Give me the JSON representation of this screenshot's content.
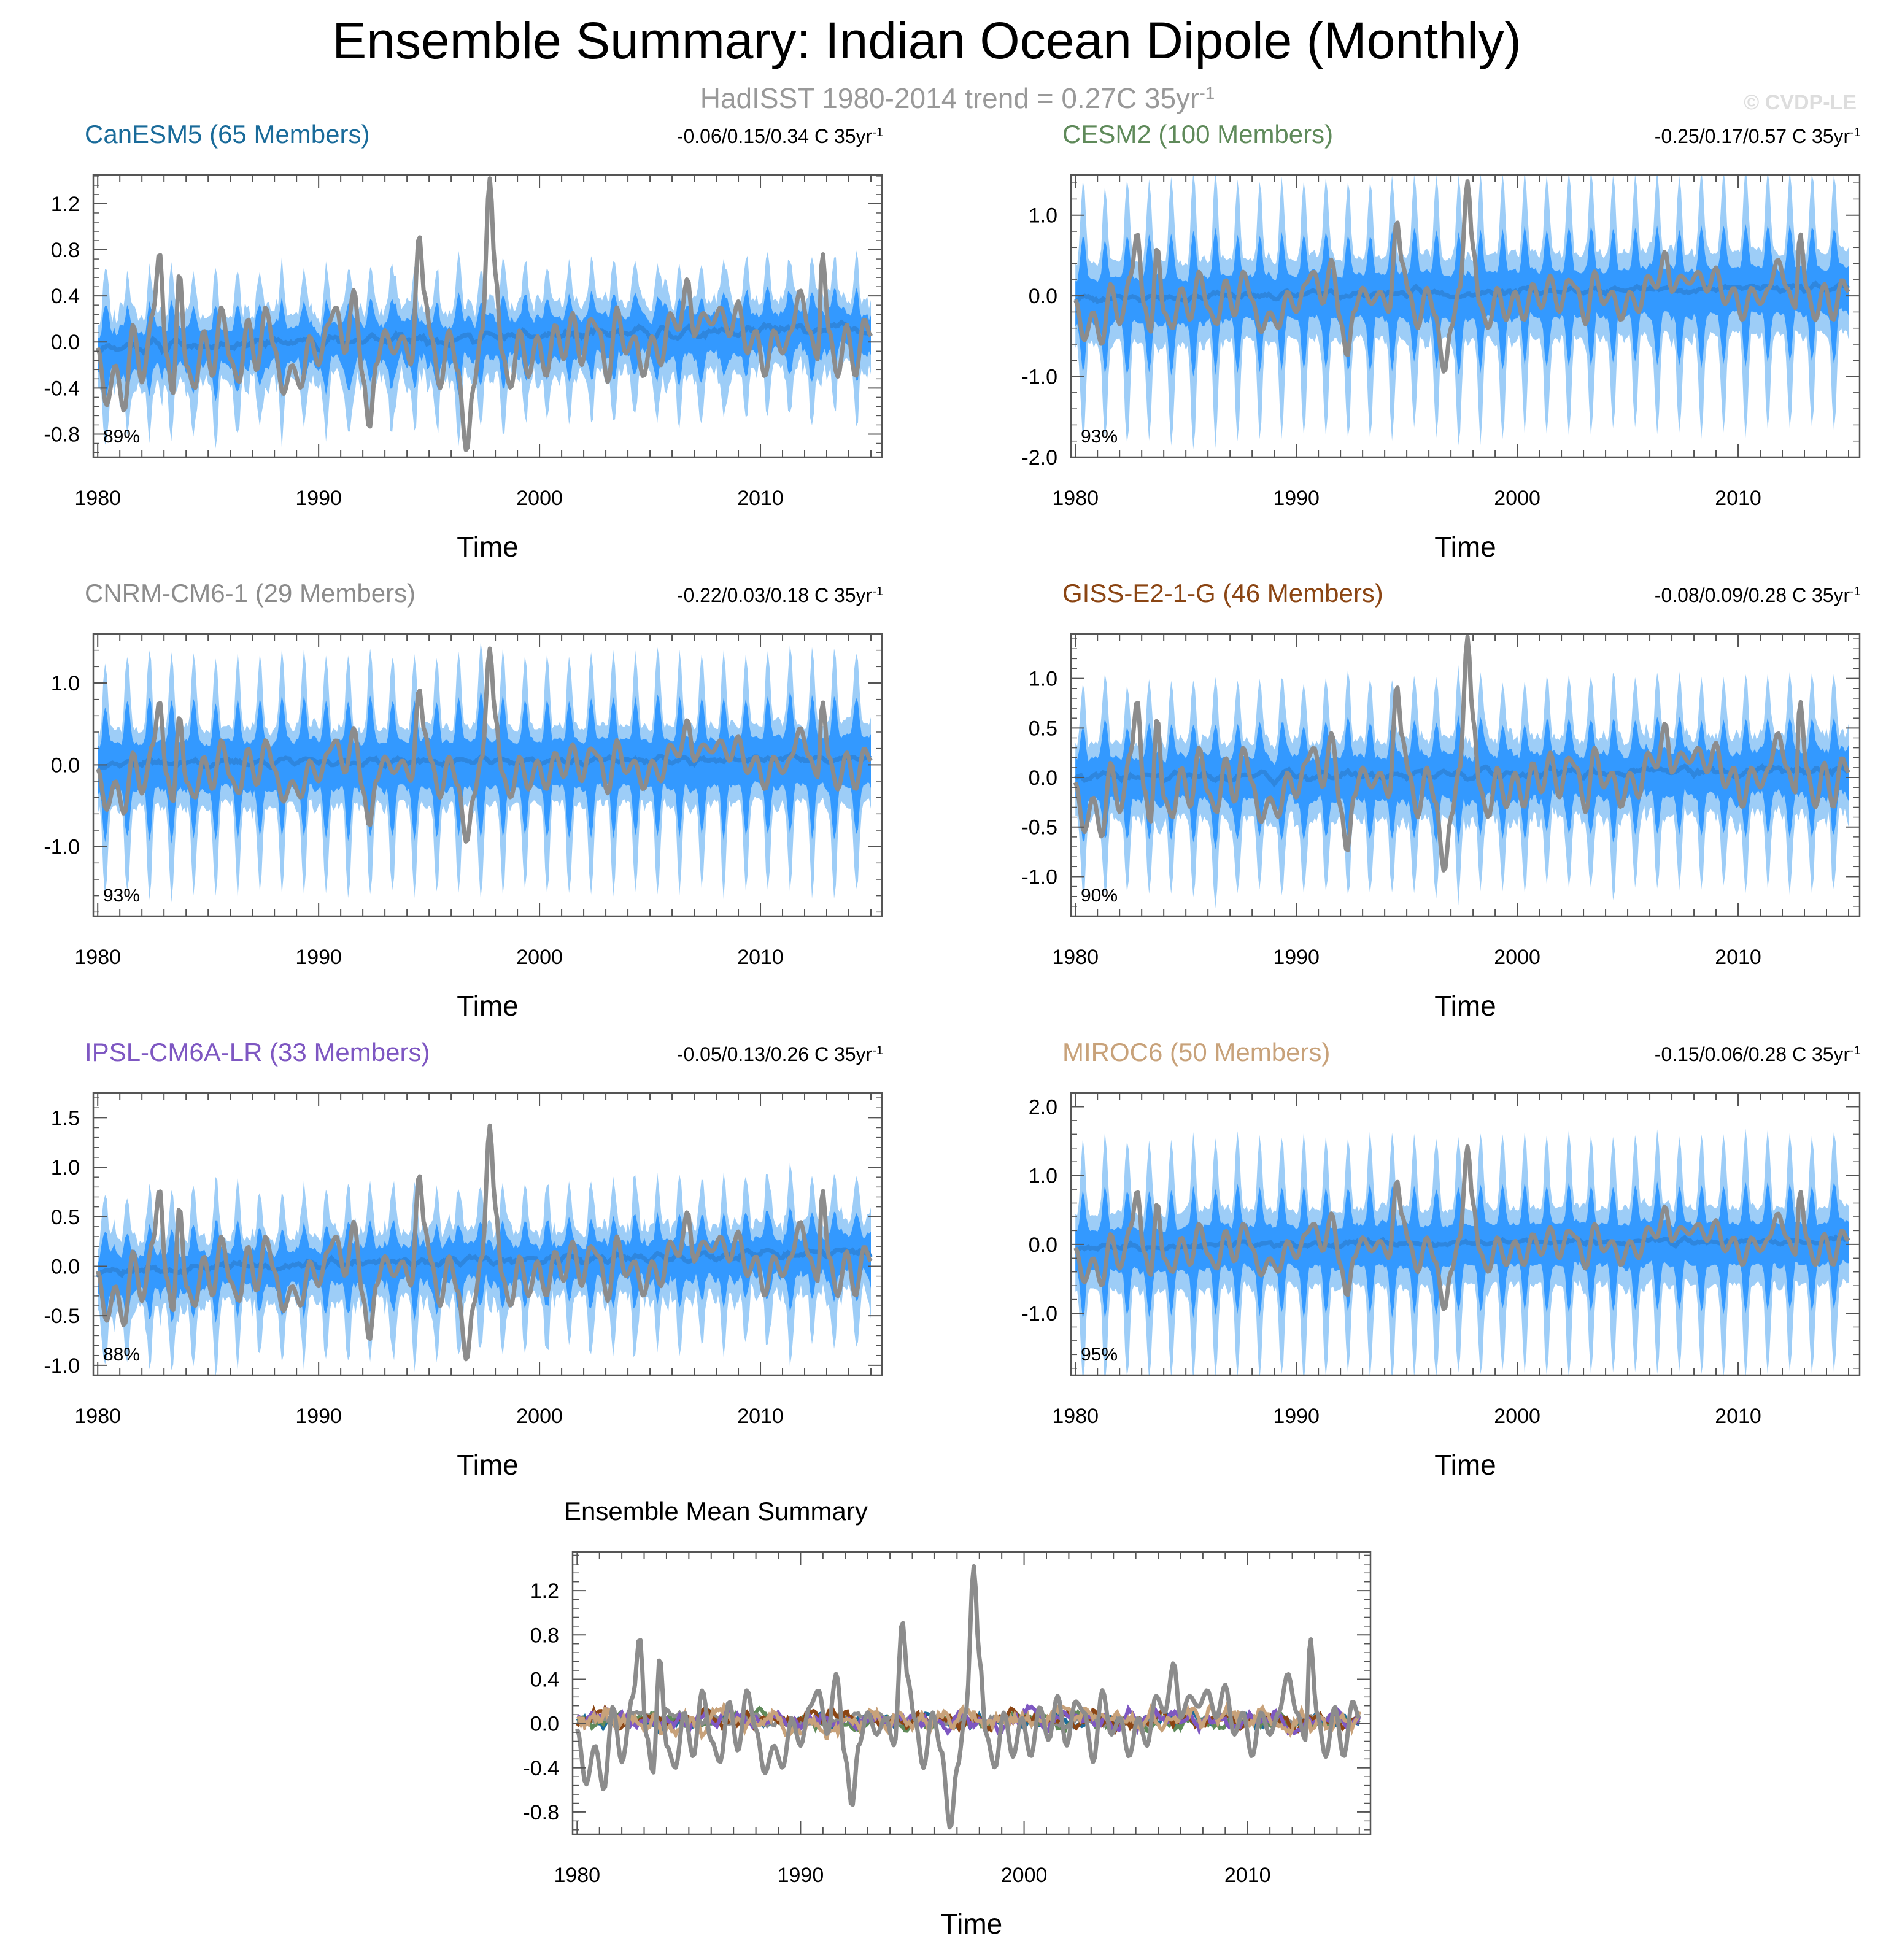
{
  "figure": {
    "title": "Ensemble Summary: Indian Ocean Dipole (Monthly)",
    "subtitle_main": "HadISST 1980-2014 trend = 0.27C 35yr",
    "subtitle_sup": "-1",
    "watermark": "© CVDP-LE"
  },
  "colors": {
    "observed": "#8c8c8c",
    "ens_mean": "#2e86de",
    "band_outer": "#9dcdf7",
    "band_inner": "#3399ff",
    "axis": "#555555"
  },
  "chart_data": [
    {
      "type": "area",
      "id": "canesm5",
      "title": "CanESM5 (65 Members)",
      "title_color": "#1a6b9a",
      "trend_text": "-0.06/0.15/0.34 C 35yr",
      "trend_sup": "-1",
      "percent": "89%",
      "xlabel": "Time",
      "xticks": [
        1980,
        1990,
        2000,
        2010
      ],
      "xlim": [
        1979.8,
        2015.5
      ],
      "ylim": [
        -1.0,
        1.45
      ],
      "yticks": [
        -0.8,
        -0.4,
        0.0,
        0.4,
        0.8,
        1.2
      ],
      "ytick_labels": [
        "-0.8",
        "-0.4",
        "0.0",
        "0.4",
        "0.8",
        "1.2"
      ],
      "band": {
        "outer_hw": 0.55,
        "inner_hw": 0.3,
        "seasonal": 0.12,
        "noise": 0.16,
        "trend": [
          -0.06,
          0.1
        ]
      },
      "seed": 11
    },
    {
      "type": "area",
      "id": "cesm2",
      "title": "CESM2 (100 Members)",
      "title_color": "#5f8a5a",
      "trend_text": "-0.25/0.17/0.57 C 35yr",
      "trend_sup": "-1",
      "percent": "93%",
      "xlabel": "Time",
      "xticks": [
        1980,
        1990,
        2000,
        2010
      ],
      "xlim": [
        1979.8,
        2015.5
      ],
      "ylim": [
        -2.0,
        1.5
      ],
      "yticks": [
        -2.0,
        -1.0,
        0.0,
        1.0
      ],
      "ytick_labels": [
        "-2.0",
        "-1.0",
        "0.0",
        "1.0"
      ],
      "band": {
        "outer_hw": 1.1,
        "inner_hw": 0.6,
        "seasonal": 0.55,
        "noise": 0.12,
        "trend": [
          -0.05,
          0.1
        ]
      },
      "seed": 23
    },
    {
      "type": "area",
      "id": "cnrm",
      "title": "CNRM-CM6-1 (29 Members)",
      "title_color": "#8c8c8c",
      "trend_text": "-0.22/0.03/0.18 C 35yr",
      "trend_sup": "-1",
      "percent": "93%",
      "xlabel": "Time",
      "xticks": [
        1980,
        1990,
        2000,
        2010
      ],
      "xlim": [
        1979.8,
        2015.5
      ],
      "ylim": [
        -1.85,
        1.6
      ],
      "yticks": [
        -1.0,
        0.0,
        1.0
      ],
      "ytick_labels": [
        "-1.0",
        "0.0",
        "1.0"
      ],
      "band": {
        "outer_hw": 1.0,
        "inner_hw": 0.62,
        "seasonal": 0.5,
        "noise": 0.12,
        "trend": [
          0.0,
          0.05
        ]
      },
      "seed": 37
    },
    {
      "type": "area",
      "id": "giss",
      "title": "GISS-E2-1-G (46 Members)",
      "title_color": "#8b4513",
      "trend_text": "-0.08/0.09/0.28 C 35yr",
      "trend_sup": "-1",
      "percent": "90%",
      "xlabel": "Time",
      "xticks": [
        1980,
        1990,
        2000,
        2010
      ],
      "xlim": [
        1979.8,
        2015.5
      ],
      "ylim": [
        -1.4,
        1.45
      ],
      "yticks": [
        -1.0,
        -0.5,
        0.0,
        0.5,
        1.0
      ],
      "ytick_labels": [
        "-1.0",
        "-0.5",
        "0.0",
        "0.5",
        "1.0"
      ],
      "band": {
        "outer_hw": 0.8,
        "inner_hw": 0.45,
        "seasonal": 0.3,
        "noise": 0.14,
        "trend": [
          -0.02,
          0.06
        ]
      },
      "seed": 41
    },
    {
      "type": "area",
      "id": "ipsl",
      "title": "IPSL-CM6A-LR (33 Members)",
      "title_color": "#7e57c2",
      "trend_text": "-0.05/0.13/0.26 C 35yr",
      "trend_sup": "-1",
      "percent": "88%",
      "xlabel": "Time",
      "xticks": [
        1980,
        1990,
        2000,
        2010
      ],
      "xlim": [
        1979.8,
        2015.5
      ],
      "ylim": [
        -1.1,
        1.75
      ],
      "yticks": [
        -1.0,
        -0.5,
        0.0,
        0.5,
        1.0,
        1.5
      ],
      "ytick_labels": [
        "-1.0",
        "-0.5",
        "0.0",
        "0.5",
        "1.0",
        "1.5"
      ],
      "band": {
        "outer_hw": 0.65,
        "inner_hw": 0.34,
        "seasonal": 0.2,
        "noise": 0.18,
        "trend": [
          -0.05,
          0.12
        ]
      },
      "seed": 53
    },
    {
      "type": "area",
      "id": "miroc6",
      "title": "MIROC6 (50 Members)",
      "title_color": "#c8a27a",
      "trend_text": "-0.15/0.06/0.28 C 35yr",
      "trend_sup": "-1",
      "percent": "95%",
      "xlabel": "Time",
      "xticks": [
        1980,
        1990,
        2000,
        2010
      ],
      "xlim": [
        1979.8,
        2015.5
      ],
      "ylim": [
        -1.9,
        2.2
      ],
      "yticks": [
        -1.0,
        0.0,
        1.0,
        2.0
      ],
      "ytick_labels": [
        "-1.0",
        "0.0",
        "1.0",
        "2.0"
      ],
      "band": {
        "outer_hw": 1.2,
        "inner_hw": 0.65,
        "seasonal": 0.6,
        "noise": 0.12,
        "trend": [
          -0.05,
          0.05
        ]
      },
      "seed": 67
    },
    {
      "type": "line",
      "id": "ensmean",
      "title": "Ensemble Mean Summary",
      "title_color": "#000000",
      "trend_text": "",
      "trend_sup": "",
      "percent": "",
      "xlabel": "Time",
      "xticks": [
        1980,
        1990,
        2000,
        2010
      ],
      "xlim": [
        1979.8,
        2015.5
      ],
      "ylim": [
        -1.0,
        1.55
      ],
      "yticks": [
        -0.8,
        -0.4,
        0.0,
        0.4,
        0.8,
        1.2
      ],
      "ytick_labels": [
        "-0.8",
        "-0.4",
        "0.0",
        "0.4",
        "0.8",
        "1.2"
      ],
      "series": [
        {
          "name": "CanESM5",
          "color": "#1a6b9a",
          "amp": 0.07,
          "seed": 101
        },
        {
          "name": "CESM2",
          "color": "#5f8a5a",
          "amp": 0.08,
          "seed": 102
        },
        {
          "name": "CNRM-CM6-1",
          "color": "#8c8c8c",
          "amp": 0.06,
          "seed": 103
        },
        {
          "name": "GISS-E2-1-G",
          "color": "#8b4513",
          "amp": 0.09,
          "seed": 104
        },
        {
          "name": "IPSL-CM6A-LR",
          "color": "#7e57c2",
          "amp": 0.1,
          "seed": 105
        },
        {
          "name": "MIROC6",
          "color": "#c8a27a",
          "amp": 0.13,
          "seed": 106
        }
      ],
      "seed": 99
    }
  ],
  "observed": {
    "name": "HadISST",
    "years_start": 1980,
    "years_end": 2015,
    "anchors": [
      [
        1980.0,
        -0.05
      ],
      [
        1980.4,
        -0.55
      ],
      [
        1980.8,
        -0.2
      ],
      [
        1981.2,
        -0.6
      ],
      [
        1981.6,
        0.15
      ],
      [
        1982.0,
        -0.35
      ],
      [
        1982.5,
        0.25
      ],
      [
        1982.8,
        0.78
      ],
      [
        1983.1,
        -0.1
      ],
      [
        1983.4,
        -0.45
      ],
      [
        1983.7,
        0.6
      ],
      [
        1984.0,
        -0.2
      ],
      [
        1984.4,
        -0.4
      ],
      [
        1984.8,
        0.1
      ],
      [
        1985.2,
        -0.3
      ],
      [
        1985.6,
        0.3
      ],
      [
        1986.0,
        -0.15
      ],
      [
        1986.4,
        -0.35
      ],
      [
        1986.8,
        0.2
      ],
      [
        1987.2,
        -0.25
      ],
      [
        1987.6,
        0.3
      ],
      [
        1988.0,
        -0.05
      ],
      [
        1988.4,
        -0.45
      ],
      [
        1988.8,
        -0.2
      ],
      [
        1989.2,
        -0.4
      ],
      [
        1989.6,
        0.05
      ],
      [
        1990.0,
        -0.2
      ],
      [
        1990.4,
        0.15
      ],
      [
        1990.8,
        0.3
      ],
      [
        1991.2,
        -0.1
      ],
      [
        1991.6,
        0.45
      ],
      [
        1992.0,
        -0.3
      ],
      [
        1992.3,
        -0.75
      ],
      [
        1992.6,
        -0.2
      ],
      [
        1993.0,
        0.1
      ],
      [
        1993.4,
        -0.1
      ],
      [
        1993.8,
        0.05
      ],
      [
        1994.2,
        -0.2
      ],
      [
        1994.55,
        0.93
      ],
      [
        1994.8,
        0.4
      ],
      [
        1995.1,
        0.05
      ],
      [
        1995.5,
        -0.4
      ],
      [
        1995.9,
        0.1
      ],
      [
        1996.3,
        -0.25
      ],
      [
        1996.7,
        -0.95
      ],
      [
        1997.0,
        -0.4
      ],
      [
        1997.4,
        0.1
      ],
      [
        1997.75,
        1.42
      ],
      [
        1998.0,
        0.6
      ],
      [
        1998.3,
        -0.1
      ],
      [
        1998.7,
        -0.4
      ],
      [
        1999.1,
        0.1
      ],
      [
        1999.5,
        -0.3
      ],
      [
        1999.9,
        0.05
      ],
      [
        2000.3,
        -0.3
      ],
      [
        2000.7,
        0.15
      ],
      [
        2001.1,
        -0.15
      ],
      [
        2001.5,
        0.25
      ],
      [
        2001.9,
        -0.2
      ],
      [
        2002.3,
        0.2
      ],
      [
        2002.7,
        0.1
      ],
      [
        2003.1,
        -0.35
      ],
      [
        2003.5,
        0.3
      ],
      [
        2003.9,
        -0.1
      ],
      [
        2004.3,
        0.05
      ],
      [
        2004.7,
        -0.3
      ],
      [
        2005.1,
        0.05
      ],
      [
        2005.5,
        -0.2
      ],
      [
        2005.9,
        0.25
      ],
      [
        2006.3,
        0.1
      ],
      [
        2006.7,
        0.55
      ],
      [
        2007.0,
        0.05
      ],
      [
        2007.4,
        0.25
      ],
      [
        2007.8,
        0.15
      ],
      [
        2008.2,
        0.3
      ],
      [
        2008.6,
        0.05
      ],
      [
        2009.0,
        0.35
      ],
      [
        2009.4,
        -0.1
      ],
      [
        2009.8,
        0.1
      ],
      [
        2010.2,
        -0.3
      ],
      [
        2010.6,
        0.1
      ],
      [
        2011.0,
        -0.1
      ],
      [
        2011.4,
        0.1
      ],
      [
        2011.8,
        0.45
      ],
      [
        2012.2,
        0.1
      ],
      [
        2012.6,
        -0.15
      ],
      [
        2012.8,
        0.78
      ],
      [
        2013.1,
        0.1
      ],
      [
        2013.5,
        -0.3
      ],
      [
        2013.9,
        0.15
      ],
      [
        2014.3,
        -0.3
      ],
      [
        2014.7,
        0.2
      ],
      [
        2015.0,
        0.05
      ]
    ]
  }
}
